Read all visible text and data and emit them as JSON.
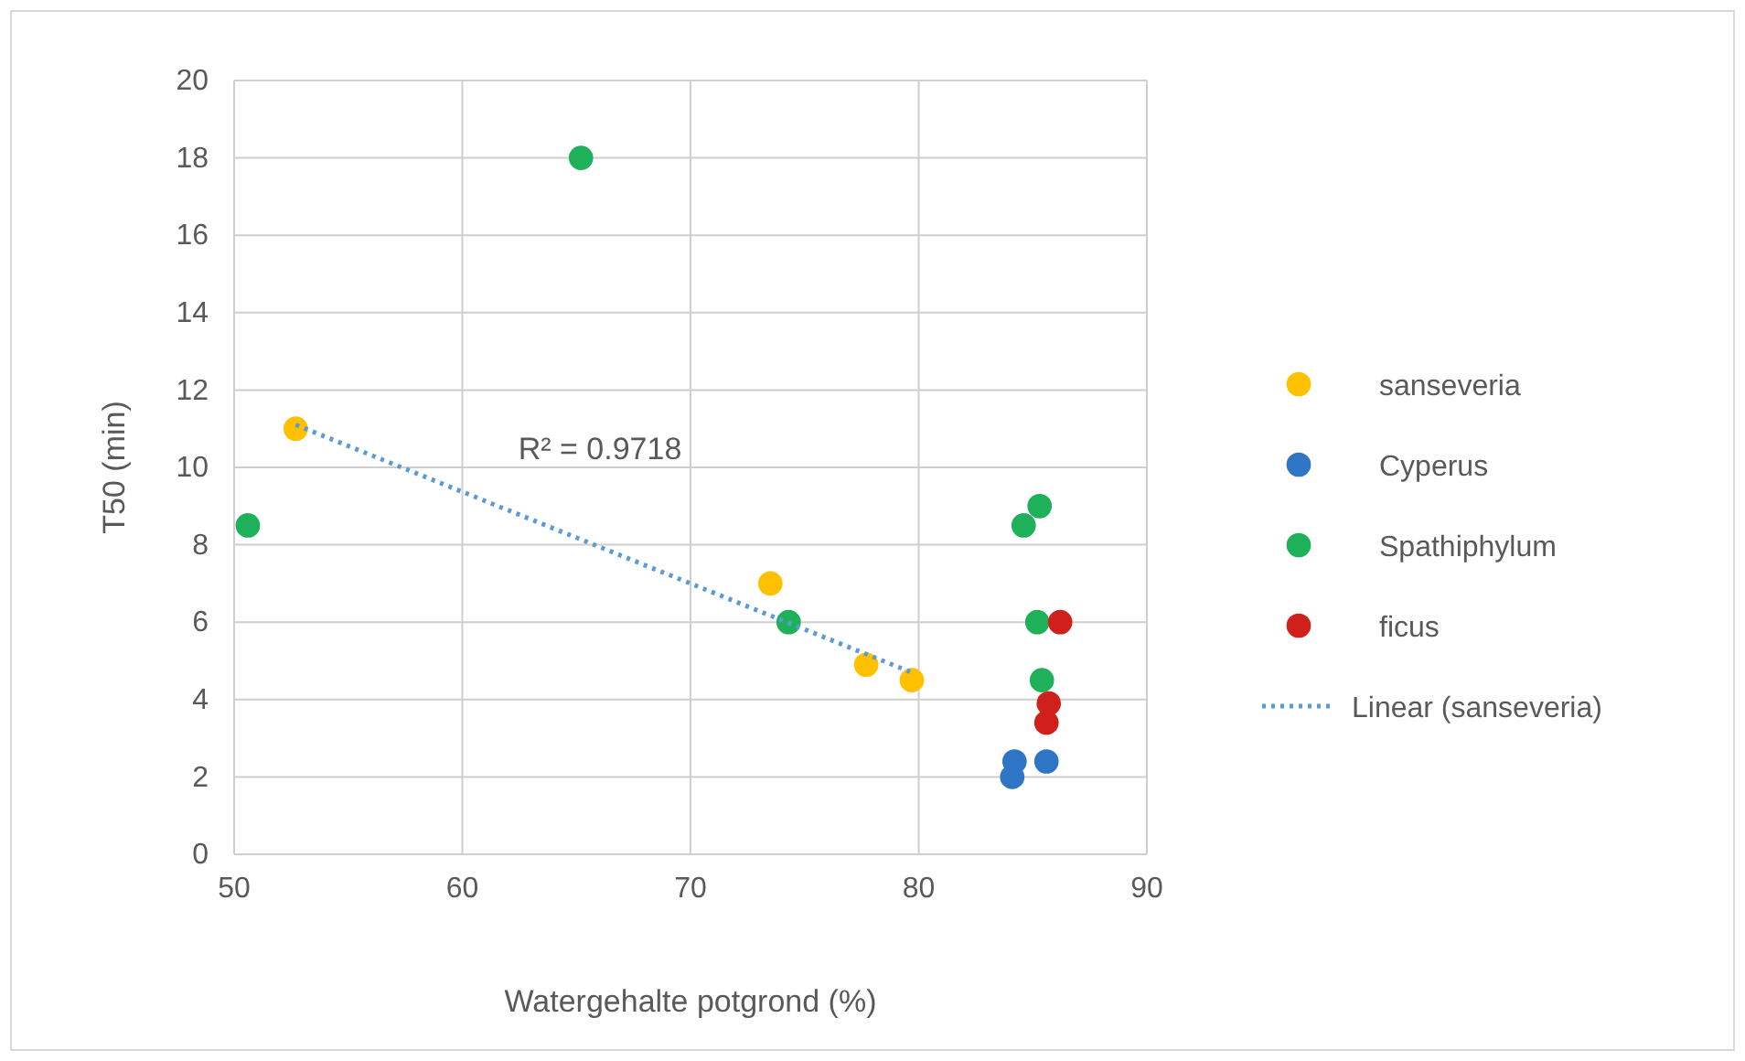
{
  "chart_data": {
    "type": "scatter",
    "xlabel": "Watergehalte potgrond (%)",
    "ylabel": "T50 (min)",
    "xlim": [
      50,
      90
    ],
    "xticks": [
      50,
      60,
      70,
      80,
      90
    ],
    "ylim": [
      0,
      20
    ],
    "yticks": [
      0,
      2,
      4,
      6,
      8,
      10,
      12,
      14,
      16,
      18,
      20
    ],
    "grid": true,
    "legend": "right",
    "marker": "circle",
    "series": [
      {
        "name": "sanseveria",
        "color": "#ffc000",
        "x": [
          52.7,
          73.5,
          77.7,
          79.7
        ],
        "values": [
          11.0,
          7.0,
          4.9,
          4.5
        ]
      },
      {
        "name": "Cyperus",
        "color": "#2e75c6",
        "x": [
          84.2,
          84.1,
          85.6
        ],
        "values": [
          2.4,
          2.0,
          2.4
        ]
      },
      {
        "name": "Spathiphylum",
        "color": "#1fb15a",
        "x": [
          50.6,
          65.2,
          74.3,
          84.6,
          85.3,
          85.2,
          85.4
        ],
        "values": [
          8.5,
          18.0,
          6.0,
          8.5,
          9.0,
          6.0,
          4.5
        ]
      },
      {
        "name": "ficus",
        "color": "#d0201c",
        "x": [
          86.2,
          85.7,
          85.6
        ],
        "values": [
          6.0,
          3.9,
          3.4
        ]
      },
      {
        "name": "Linear (sanseveria)",
        "type": "line",
        "color": "#5b9bd5",
        "line_style": "dotted",
        "marker": "none",
        "x": [
          52.7,
          79.7
        ],
        "values": [
          11.1,
          4.7
        ]
      }
    ],
    "annotations": [
      "R² = 0.9718"
    ]
  }
}
